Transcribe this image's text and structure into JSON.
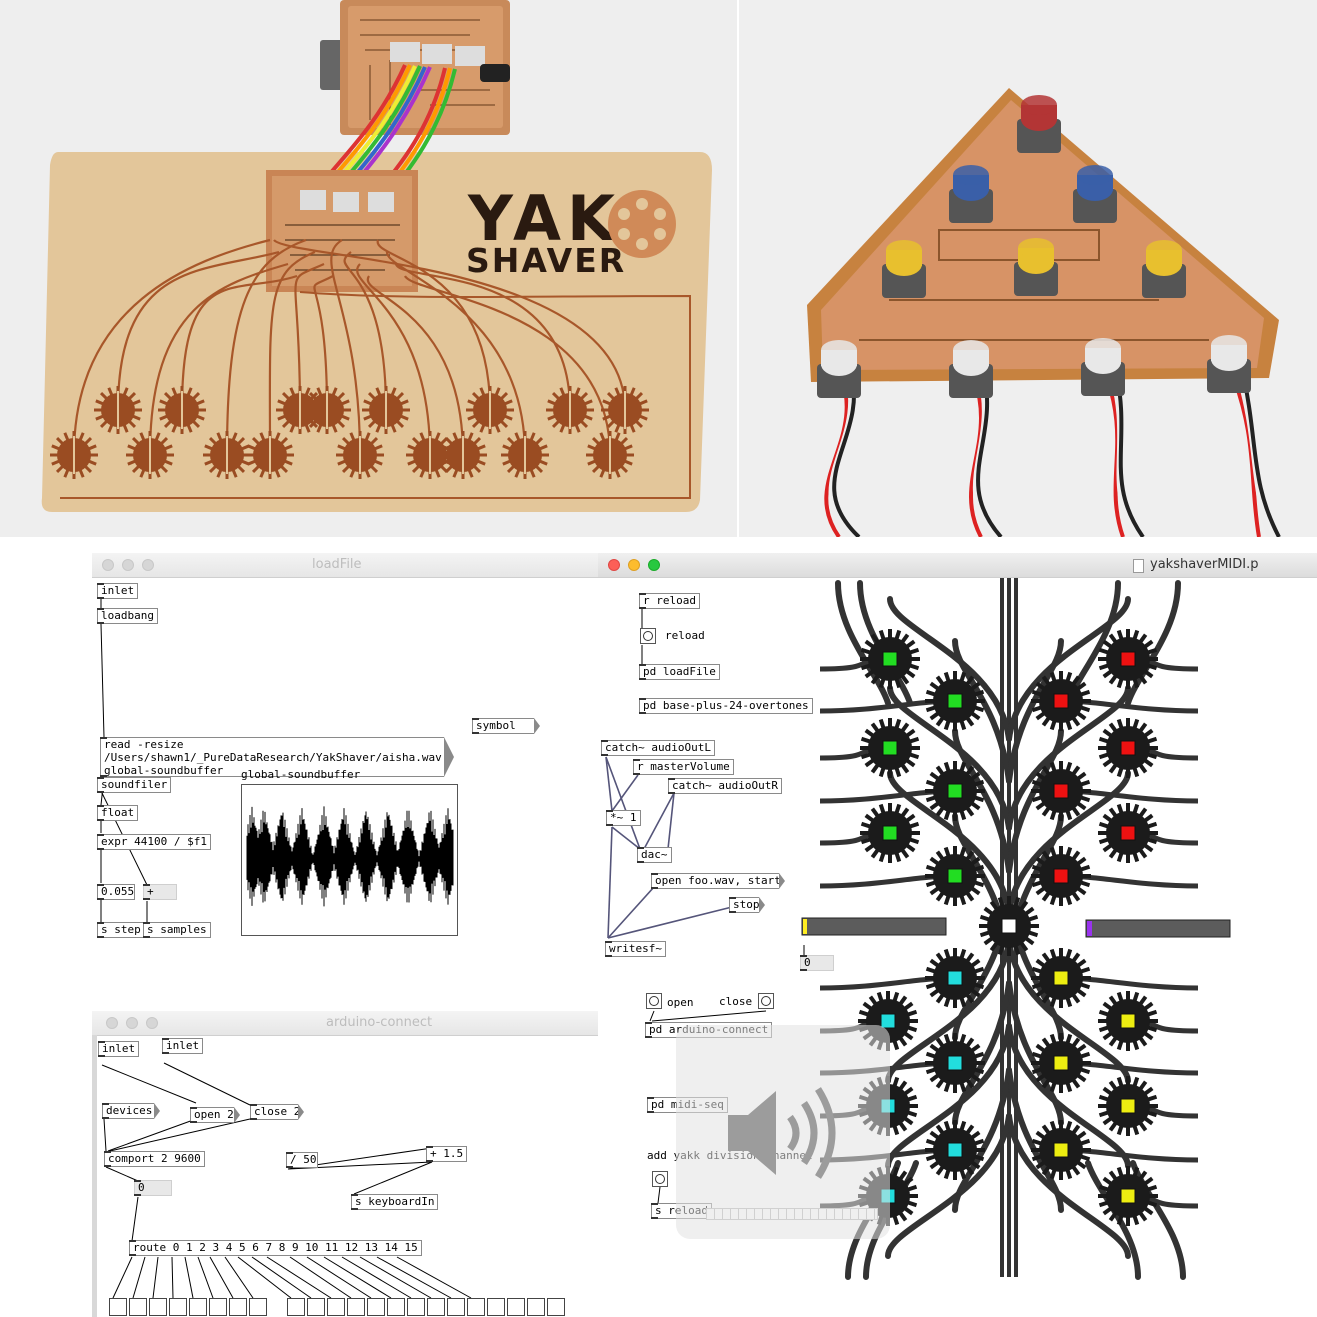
{
  "photos": {
    "yak_card": {
      "line1": "YAK",
      "line2": "SHAVER"
    },
    "knob_board": {}
  },
  "loadfile": {
    "title": "loadFile",
    "objects": {
      "inlet": "inlet",
      "loadbang": "loadbang",
      "read_line1": "read -resize",
      "read_line2": "/Users/shawn1/_PureDataResearch/YakShaver/aisha.wav",
      "read_line3": "global-soundbuffer",
      "soundfiler": "soundfiler",
      "symbol": "symbol",
      "float": "float",
      "expr": "expr 44100 / $f1",
      "num_step": "0.055",
      "plus": "+",
      "s_step": "s step",
      "s_samples": "s samples",
      "array_name": "global-soundbuffer"
    }
  },
  "arduino": {
    "title": "arduino-connect",
    "objects": {
      "inlet1": "inlet",
      "inlet2": "inlet",
      "devices": "devices",
      "open2": "open 2",
      "close2": "close 2",
      "comport": "comport 2 9600",
      "num0": "0",
      "div50": "/ 50",
      "plus15": "+ 1.5",
      "keyboardin": "s keyboardIn",
      "route": "route 0 1 2 3 4 5 6 7 8 9 10 11 12 13 14 15"
    }
  },
  "midi": {
    "title": "yakshaverMIDI.p",
    "objects": {
      "r_reload": "r reload",
      "reload_label": "reload",
      "pd_loadfile": "pd loadFile",
      "pd_base": "pd base-plus-24-overtones",
      "catch_l": "catch~ audioOutL",
      "r_master": "r masterVolume",
      "catch_r": "catch~ audioOutR",
      "mult": "*~ 1",
      "dac": "dac~",
      "open_msg": "open foo.wav, start",
      "stop_msg": "stop",
      "writesf": "writesf~",
      "num0": "0",
      "open_label": "open",
      "close_label": "close",
      "pd_arduino": "pd arduino-connect",
      "pd_midi": "pd midi-seq",
      "add_comment": "add yakk division channel",
      "s_reload": "s reload"
    },
    "colors": {
      "green": "#22dd22",
      "red": "#ee1111",
      "cyan": "#22dddd",
      "yellow": "#eeee11",
      "purple": "#9933ee",
      "slider_bg": "#5c5c5c"
    }
  },
  "overlay": {
    "icon": "speaker-volume-icon"
  }
}
